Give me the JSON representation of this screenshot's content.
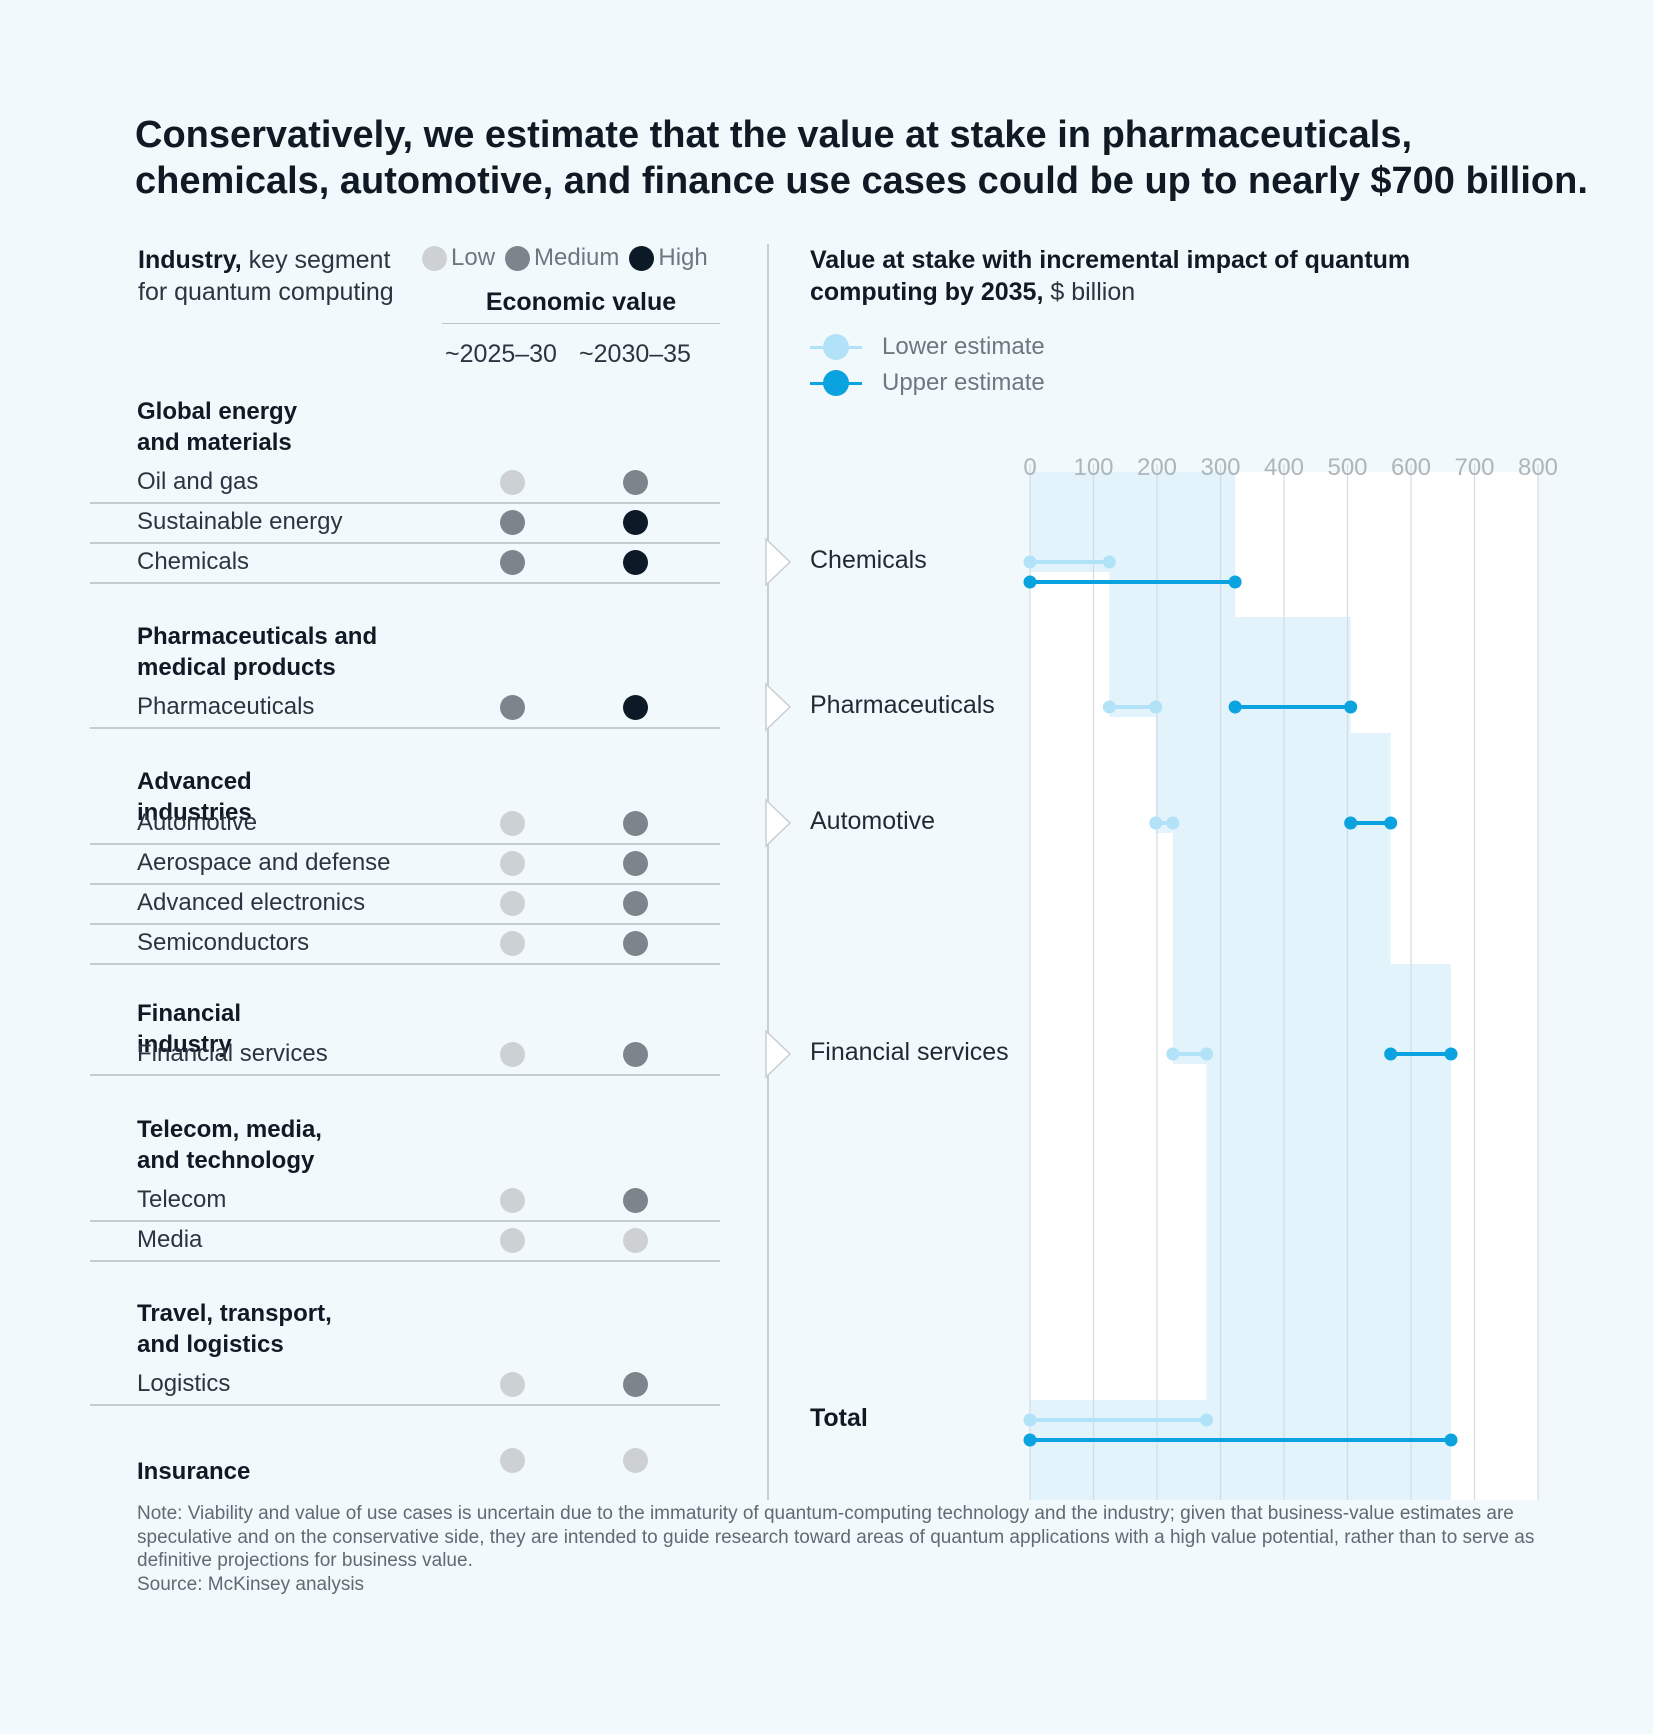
{
  "title": "Conservatively, we estimate that the value at stake in pharmaceuticals, chemicals, automotive, and finance use cases could be up to nearly $700 billion.",
  "left_header": {
    "bold": "Industry,",
    "rest": " key segment for quantum computing"
  },
  "legend": {
    "low": "Low",
    "medium": "Medium",
    "high": "High"
  },
  "economic_value_label": "Economic value",
  "periods": [
    "~2025–30",
    "~2030–35"
  ],
  "colors": {
    "low": "#cdd1d4",
    "medium": "#7d858c",
    "high": "#0b1a26",
    "lower_estimate": "#b2e2f7",
    "upper_estimate": "#0aa3e0",
    "band": "#e2f3fb"
  },
  "groups": [
    {
      "title": "Global energy and materials",
      "rows": [
        {
          "label": "Oil and gas",
          "v1": "low",
          "v2": "medium"
        },
        {
          "label": "Sustainable energy",
          "v1": "medium",
          "v2": "high"
        },
        {
          "label": "Chemicals",
          "v1": "medium",
          "v2": "high"
        }
      ]
    },
    {
      "title": "Pharmaceuticals and medical products",
      "rows": [
        {
          "label": "Pharmaceuticals",
          "v1": "medium",
          "v2": "high"
        }
      ]
    },
    {
      "title": "Advanced industries",
      "rows": [
        {
          "label": "Automotive",
          "v1": "low",
          "v2": "medium"
        },
        {
          "label": "Aerospace and defense",
          "v1": "low",
          "v2": "medium"
        },
        {
          "label": "Advanced electronics",
          "v1": "low",
          "v2": "medium"
        },
        {
          "label": "Semiconductors",
          "v1": "low",
          "v2": "medium"
        }
      ]
    },
    {
      "title": "Financial industry",
      "rows": [
        {
          "label": "Financial services",
          "v1": "low",
          "v2": "medium"
        }
      ]
    },
    {
      "title": "Telecom, media, and technology",
      "rows": [
        {
          "label": "Telecom",
          "v1": "low",
          "v2": "medium"
        },
        {
          "label": "Media",
          "v1": "low",
          "v2": "low"
        }
      ]
    },
    {
      "title": "Travel, transport, and logistics",
      "rows": [
        {
          "label": "Logistics",
          "v1": "low",
          "v2": "medium"
        }
      ]
    },
    {
      "title": "Insurance",
      "rows": [
        {
          "label": "",
          "v1": "low",
          "v2": "low"
        }
      ]
    }
  ],
  "chart_data": {
    "type": "waterfall-range",
    "title": "Value at stake with incremental impact of quantum computing by 2035,",
    "unit": "$ billion",
    "legend": [
      "Lower estimate",
      "Upper estimate"
    ],
    "xlim": [
      0,
      800
    ],
    "ticks": [
      0,
      100,
      200,
      300,
      400,
      500,
      600,
      700,
      800
    ],
    "tick_labels": [
      "0",
      "100",
      "200",
      "300",
      "400",
      "500",
      "600",
      "700",
      "800"
    ],
    "categories": [
      "Chemicals",
      "Pharmaceuticals",
      "Automotive",
      "Financial services",
      "Total"
    ],
    "series": [
      {
        "name": "Lower estimate",
        "ranges": [
          [
            0,
            125
          ],
          [
            125,
            198
          ],
          [
            198,
            225
          ],
          [
            225,
            278
          ],
          [
            0,
            278
          ]
        ]
      },
      {
        "name": "Upper estimate",
        "ranges": [
          [
            0,
            323
          ],
          [
            323,
            505
          ],
          [
            505,
            568
          ],
          [
            568,
            663
          ],
          [
            0,
            663
          ]
        ]
      }
    ]
  },
  "note": "Note: Viability and value of use cases is uncertain due to the immaturity of quantum-computing technology and the industry; given that business-value estimates are speculative and on the conservative side, they are intended to guide research toward areas of quantum applications with a high value potential, rather than to serve as definitive projections for business value.",
  "source": "Source: McKinsey analysis"
}
